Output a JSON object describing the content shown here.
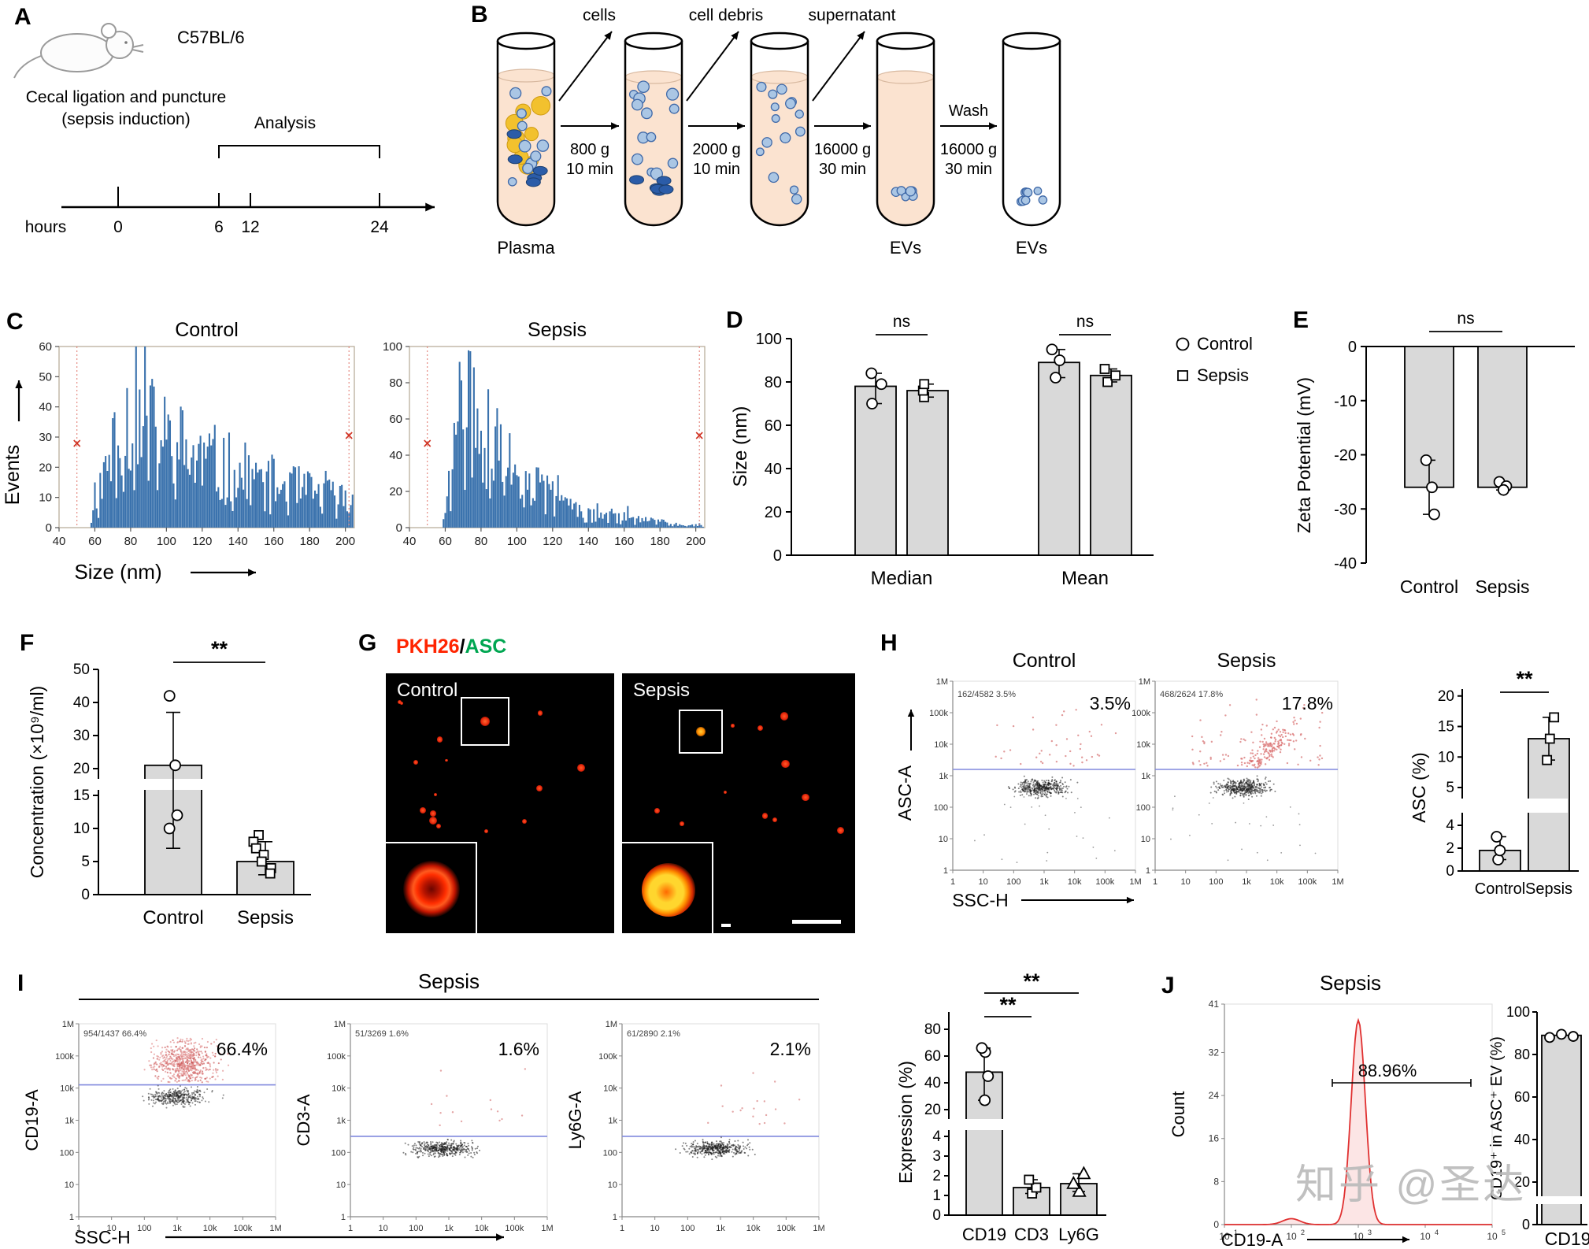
{
  "watermark": "知乎 @圣达",
  "panels": {
    "a": {
      "label": "A",
      "strain": "C57BL/6",
      "procedure_lines": [
        "Cecal ligation and puncture",
        "(sepsis induction)"
      ],
      "analysis": "Analysis",
      "time_unit": "hours",
      "time_ticks": [
        "0",
        "6",
        "12",
        "24"
      ]
    },
    "b": {
      "label": "B",
      "removed_labels": [
        "cells",
        "cell debris",
        "supernatant"
      ],
      "spin_labels": [
        [
          "800 g",
          "10 min"
        ],
        [
          "2000 g",
          "10 min"
        ],
        [
          "16000 g",
          "30 min"
        ]
      ],
      "wash_labels": [
        "Wash",
        "16000 g",
        "30 min"
      ],
      "tube_bottom_labels": [
        "Plasma",
        "",
        "",
        "EVs",
        "EVs"
      ]
    },
    "c": {
      "label": "C",
      "ylabel": "Events",
      "xlabel": "Size (nm)",
      "xticks": [
        40,
        60,
        80,
        100,
        120,
        140,
        160,
        180,
        200
      ],
      "xlim": [
        40,
        205
      ],
      "marker_x": [
        50,
        202
      ],
      "plots": [
        {
          "title": "Control",
          "ymax": 60,
          "yticks": [
            0,
            10,
            20,
            30,
            40,
            50,
            60
          ],
          "rise_start": 57,
          "peak_x": 75,
          "peak_y": 45,
          "decay": 90,
          "seed": 11
        },
        {
          "title": "Sepsis",
          "ymax": 100,
          "yticks": [
            0,
            20,
            40,
            60,
            80,
            100
          ],
          "rise_start": 58,
          "peak_x": 70,
          "peak_y": 85,
          "decay": 35,
          "seed": 29
        }
      ]
    },
    "d": {
      "label": "D",
      "ylabel": "Size (nm)",
      "yticks": [
        0,
        20,
        40,
        60,
        80,
        100
      ],
      "categories": [
        "Median",
        "Mean"
      ],
      "series": [
        {
          "name": "Control",
          "marker": "circle",
          "values": [
            78,
            89
          ],
          "points": [
            [
              70,
              79,
              84
            ],
            [
              82,
              90,
              95
            ]
          ]
        },
        {
          "name": "Sepsis",
          "marker": "square",
          "values": [
            76,
            83
          ],
          "points": [
            [
              73,
              76,
              79
            ],
            [
              80,
              83,
              86
            ]
          ]
        }
      ],
      "sig": [
        "ns",
        "ns"
      ]
    },
    "e": {
      "label": "E",
      "ylabel": "Zeta Potential (mV)",
      "yticks": [
        0,
        -10,
        -20,
        -30,
        -40
      ],
      "categories": [
        "Control",
        "Sepsis"
      ],
      "values": [
        -26,
        -26
      ],
      "points": [
        [
          -21,
          -26,
          -31
        ],
        [
          -25,
          -25.8,
          -26.5
        ]
      ],
      "sig": "ns"
    },
    "f": {
      "label": "F",
      "ylabel": "Concentration (×10⁹/ml)",
      "upper_ticks": [
        20,
        30,
        40,
        50
      ],
      "lower_ticks": [
        0,
        5,
        10,
        15
      ],
      "categories": [
        "Control",
        "Sepsis"
      ],
      "values": [
        21,
        5
      ],
      "points": [
        [
          42,
          21,
          12,
          10
        ],
        [
          9,
          8,
          7,
          6,
          5,
          4,
          3.2
        ]
      ],
      "errors": [
        [
          7,
          37
        ],
        [
          3,
          8
        ]
      ],
      "sig": "**"
    },
    "g": {
      "label": "G",
      "title_parts": [
        {
          "text": "PKH26",
          "color": "#ff2400"
        },
        {
          "text": "/",
          "color": "#000000"
        },
        {
          "text": "ASC",
          "color": "#00a651"
        }
      ],
      "image_labels": [
        "Control",
        "Sepsis"
      ]
    },
    "h": {
      "label": "H",
      "flow": {
        "ylabel": "ASC-A",
        "xlabel": "SSC-H",
        "decade_labels": [
          "1",
          "10",
          "100",
          "1k",
          "10k",
          "100k",
          "1M"
        ],
        "plots": [
          {
            "title": "Control",
            "stats": "162/4582 3.5%",
            "pct": "3.5%"
          },
          {
            "title": "Sepsis",
            "stats": "468/2624 17.8%",
            "pct": "17.8%"
          }
        ]
      },
      "bar": {
        "ylabel": "ASC (%)",
        "upper_ticks": [
          5,
          10,
          15,
          20
        ],
        "lower_ticks": [
          0,
          2,
          4
        ],
        "categories": [
          "Control",
          "Sepsis"
        ],
        "values": [
          1.8,
          13
        ],
        "points": [
          [
            1.0,
            1.8,
            3.0
          ],
          [
            9.5,
            13,
            16.5
          ]
        ],
        "sig": "**"
      }
    },
    "i": {
      "label": "I",
      "group_title": "Sepsis",
      "flow": {
        "xlabel": "SSC-H",
        "decade_labels": [
          "1",
          "10",
          "100",
          "1k",
          "10k",
          "100k",
          "1M"
        ],
        "plots": [
          {
            "ylabel": "CD19-A",
            "stats": "954/1437 66.4%",
            "pct": "66.4%"
          },
          {
            "ylabel": "CD3-A",
            "stats": "51/3269 1.6%",
            "pct": "1.6%"
          },
          {
            "ylabel": "Ly6G-A",
            "stats": "61/2890 2.1%",
            "pct": "2.1%"
          }
        ]
      },
      "bar": {
        "ylabel": "Expression (%)",
        "upper_ticks": [
          20,
          40,
          60,
          80
        ],
        "lower_ticks": [
          0,
          1,
          2,
          3,
          4
        ],
        "categories": [
          "CD19",
          "CD3",
          "Ly6G"
        ],
        "markers": [
          "circle",
          "square",
          "triangle"
        ],
        "values": [
          48,
          1.4,
          1.6
        ],
        "points": [
          [
            27,
            45,
            63,
            66
          ],
          [
            1.1,
            1.4,
            1.8
          ],
          [
            1.2,
            1.6,
            2.1
          ]
        ],
        "sig": [
          {
            "from": 0,
            "to": 1,
            "label": "**"
          },
          {
            "from": 0,
            "to": 2,
            "label": "**"
          }
        ]
      }
    },
    "j": {
      "label": "J",
      "title": "Sepsis",
      "hist": {
        "ylabel": "Count",
        "xlabel": "CD19-A",
        "yticks": [
          0,
          8,
          16,
          24,
          32,
          41
        ],
        "x_decades": [
          1,
          2,
          3,
          4,
          5
        ],
        "gate_label": "88.96%",
        "peak_log": 3.0,
        "peak_count": 38
      },
      "bar": {
        "ylabel": "CD19⁺ in ASC⁺ EV (%)",
        "yticks": [
          0,
          20,
          40,
          60,
          80,
          100
        ],
        "category": "CD19",
        "value": 89,
        "points": [
          88,
          89.5,
          88.5
        ]
      }
    }
  }
}
